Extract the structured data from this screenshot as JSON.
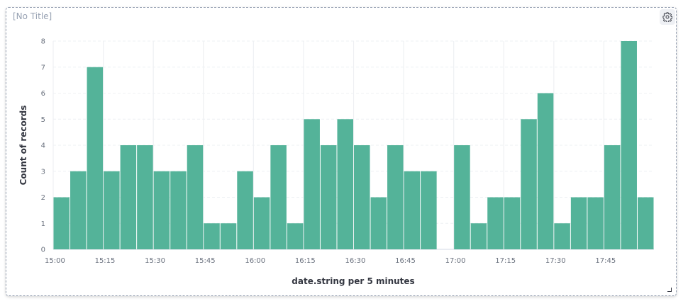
{
  "panel": {
    "title": "[No Title]"
  },
  "icons": {
    "settings": "gear-icon",
    "resize": "resize-handle-icon"
  },
  "colors": {
    "bar": "#54b399",
    "grid": "#eef0f3",
    "axis_text": "#69707d",
    "title_text": "#343741"
  },
  "chart_data": {
    "type": "bar",
    "title": "",
    "xlabel": "date.string per 5 minutes",
    "ylabel": "Count of records",
    "x_start": "15:00",
    "x_interval_minutes": 5,
    "x_tick_labels": [
      "15:00",
      "15:15",
      "15:30",
      "15:45",
      "16:00",
      "16:15",
      "16:30",
      "16:45",
      "17:00",
      "17:15",
      "17:30",
      "17:45"
    ],
    "y_tick_labels": [
      "0",
      "1",
      "2",
      "3",
      "4",
      "5",
      "6",
      "7",
      "8"
    ],
    "ylim": [
      0,
      8
    ],
    "grid": true,
    "categories": [
      "15:00",
      "15:05",
      "15:10",
      "15:15",
      "15:20",
      "15:25",
      "15:30",
      "15:35",
      "15:40",
      "15:45",
      "15:50",
      "15:55",
      "16:00",
      "16:05",
      "16:10",
      "16:15",
      "16:20",
      "16:25",
      "16:30",
      "16:35",
      "16:40",
      "16:45",
      "16:50",
      "16:55",
      "17:00",
      "17:05",
      "17:10",
      "17:15",
      "17:20",
      "17:25",
      "17:30",
      "17:35",
      "17:40",
      "17:45",
      "17:50",
      "17:55"
    ],
    "values": [
      2,
      3,
      7,
      3,
      4,
      4,
      3,
      3,
      4,
      1,
      1,
      3,
      2,
      4,
      1,
      5,
      4,
      5,
      4,
      2,
      4,
      3,
      3,
      0,
      4,
      1,
      2,
      2,
      5,
      6,
      1,
      2,
      2,
      4,
      8,
      2
    ]
  }
}
